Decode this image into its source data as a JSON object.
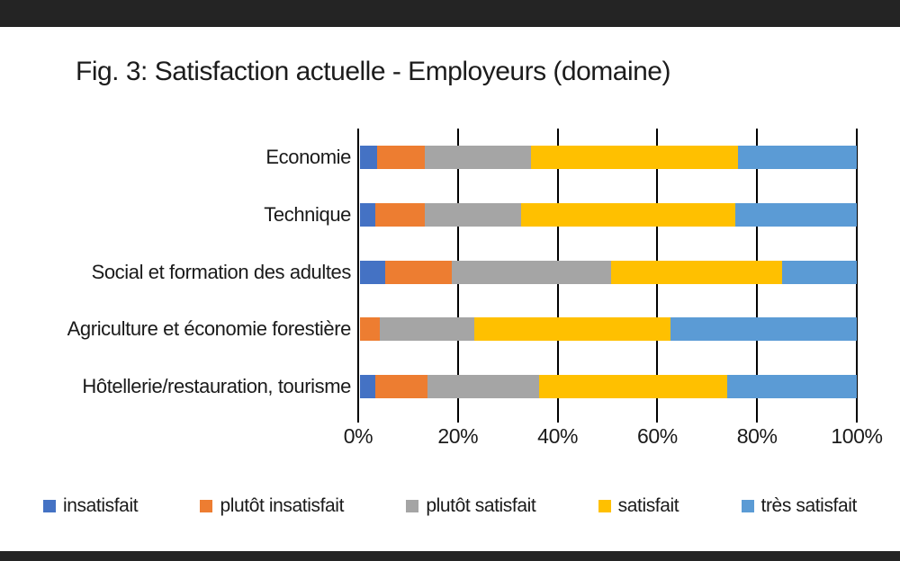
{
  "page": {
    "background_color": "#ffffff",
    "top_bar_color": "#242424",
    "bottom_bar_color": "#242424",
    "text_color": "#1a1a1a",
    "gridline_color": "#000000"
  },
  "chart_data": {
    "type": "bar",
    "orientation": "horizontal",
    "stacked": true,
    "title": "Fig. 3: Satisfaction actuelle - Employeurs (domaine)",
    "categories": [
      "Economie",
      "Technique",
      "Social et formation des adultes",
      "Agriculture et économie forestière",
      "Hôtellerie/restauration, tourisme"
    ],
    "series": [
      {
        "name": "insatisfait",
        "color": "#4472C4",
        "values": [
          3.5,
          3,
          5,
          0,
          3
        ]
      },
      {
        "name": "plutôt insatisfait",
        "color": "#ED7D31",
        "values": [
          9.5,
          10,
          13.5,
          4,
          10.5
        ]
      },
      {
        "name": "plutôt satisfait",
        "color": "#A5A5A5",
        "values": [
          21.5,
          19.5,
          32,
          19,
          22.5
        ]
      },
      {
        "name": "satisfait",
        "color": "#FFC000",
        "values": [
          41.5,
          43,
          34.5,
          39.5,
          38
        ]
      },
      {
        "name": "très satisfait",
        "color": "#5B9BD5",
        "values": [
          24,
          24.5,
          15,
          37.5,
          26
        ]
      }
    ],
    "x_axis": {
      "min": 0,
      "max": 100,
      "tick_labels": [
        "0%",
        "20%",
        "40%",
        "60%",
        "80%",
        "100%"
      ]
    },
    "grid": "vertical",
    "legend_position": "bottom"
  }
}
